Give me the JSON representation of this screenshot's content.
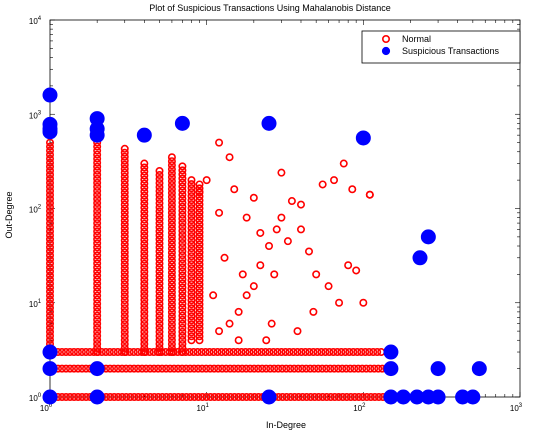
{
  "chart_data": {
    "type": "scatter",
    "title": "Plot of Suspicious Transactions Using Mahalanobis Distance",
    "xlabel": "In-Degree",
    "ylabel": "Out-Degree",
    "xscale": "log",
    "yscale": "log",
    "xlim": [
      1,
      1000
    ],
    "ylim": [
      1,
      10000
    ],
    "x_ticks": [
      {
        "value": 1,
        "base": "10",
        "exp": "0"
      },
      {
        "value": 10,
        "base": "10",
        "exp": "1"
      },
      {
        "value": 100,
        "base": "10",
        "exp": "2"
      },
      {
        "value": 1000,
        "base": "10",
        "exp": "3"
      }
    ],
    "y_ticks": [
      {
        "value": 1,
        "base": "10",
        "exp": "0"
      },
      {
        "value": 10,
        "base": "10",
        "exp": "1"
      },
      {
        "value": 100,
        "base": "10",
        "exp": "2"
      },
      {
        "value": 1000,
        "base": "10",
        "exp": "3"
      },
      {
        "value": 10000,
        "base": "10",
        "exp": "4"
      }
    ],
    "grid": false,
    "legend_position": "top-right",
    "series": [
      {
        "name": "Normal",
        "marker": "open-circle",
        "color": "#ff0000",
        "columns": [
          {
            "x": 1,
            "ymin": 3,
            "ymax": 500
          },
          {
            "x": 2,
            "ymin": 3,
            "ymax": 500
          },
          {
            "x": 3,
            "ymin": 3,
            "ymax": 430
          },
          {
            "x": 4,
            "ymin": 3,
            "ymax": 300
          },
          {
            "x": 5,
            "ymin": 3,
            "ymax": 250
          },
          {
            "x": 6,
            "ymin": 3,
            "ymax": 350
          },
          {
            "x": 7,
            "ymin": 3,
            "ymax": 280
          },
          {
            "x": 8,
            "ymin": 4,
            "ymax": 200
          },
          {
            "x": 9,
            "ymin": 4,
            "ymax": 180
          }
        ],
        "rows": [
          {
            "y": 1,
            "xmin": 1,
            "xmax": 150
          },
          {
            "y": 2,
            "xmin": 1,
            "xmax": 140
          },
          {
            "y": 3,
            "xmin": 1,
            "xmax": 130
          }
        ],
        "points": [
          [
            12,
            5
          ],
          [
            14,
            6
          ],
          [
            16,
            8
          ],
          [
            18,
            12
          ],
          [
            20,
            15
          ],
          [
            22,
            25
          ],
          [
            25,
            40
          ],
          [
            28,
            60
          ],
          [
            30,
            80
          ],
          [
            35,
            120
          ],
          [
            40,
            60
          ],
          [
            45,
            35
          ],
          [
            50,
            20
          ],
          [
            60,
            15
          ],
          [
            70,
            10
          ],
          [
            80,
            25
          ],
          [
            90,
            22
          ],
          [
            110,
            140
          ],
          [
            100,
            10
          ],
          [
            65,
            200
          ],
          [
            30,
            240
          ],
          [
            12,
            500
          ],
          [
            10,
            200
          ],
          [
            15,
            160
          ],
          [
            18,
            80
          ],
          [
            13,
            30
          ],
          [
            11,
            12
          ],
          [
            16,
            4
          ],
          [
            24,
            4
          ],
          [
            26,
            6
          ],
          [
            9,
            150
          ],
          [
            14,
            350
          ],
          [
            20,
            130
          ],
          [
            27,
            20
          ],
          [
            33,
            45
          ],
          [
            40,
            110
          ],
          [
            55,
            180
          ],
          [
            48,
            8
          ],
          [
            75,
            300
          ],
          [
            110,
            140
          ],
          [
            85,
            160
          ],
          [
            38,
            5
          ],
          [
            17,
            20
          ],
          [
            22,
            55
          ],
          [
            12,
            90
          ]
        ]
      },
      {
        "name": "Suspicious Transactions",
        "marker": "filled-circle",
        "color": "#0000ff",
        "points": [
          [
            1,
            1600
          ],
          [
            1,
            780
          ],
          [
            1,
            700
          ],
          [
            1,
            650
          ],
          [
            1,
            3
          ],
          [
            1,
            2
          ],
          [
            1,
            1
          ],
          [
            2,
            900
          ],
          [
            2,
            700
          ],
          [
            2,
            600
          ],
          [
            2,
            2
          ],
          [
            2,
            1
          ],
          [
            4,
            600
          ],
          [
            7,
            800
          ],
          [
            25,
            800
          ],
          [
            100,
            560
          ],
          [
            260,
            50
          ],
          [
            230,
            30
          ],
          [
            25,
            1
          ],
          [
            150,
            3
          ],
          [
            150,
            2
          ],
          [
            150,
            1
          ],
          [
            180,
            1
          ],
          [
            220,
            1
          ],
          [
            260,
            1
          ],
          [
            300,
            2
          ],
          [
            300,
            1
          ],
          [
            430,
            1
          ],
          [
            500,
            1
          ],
          [
            550,
            2
          ]
        ]
      }
    ]
  }
}
